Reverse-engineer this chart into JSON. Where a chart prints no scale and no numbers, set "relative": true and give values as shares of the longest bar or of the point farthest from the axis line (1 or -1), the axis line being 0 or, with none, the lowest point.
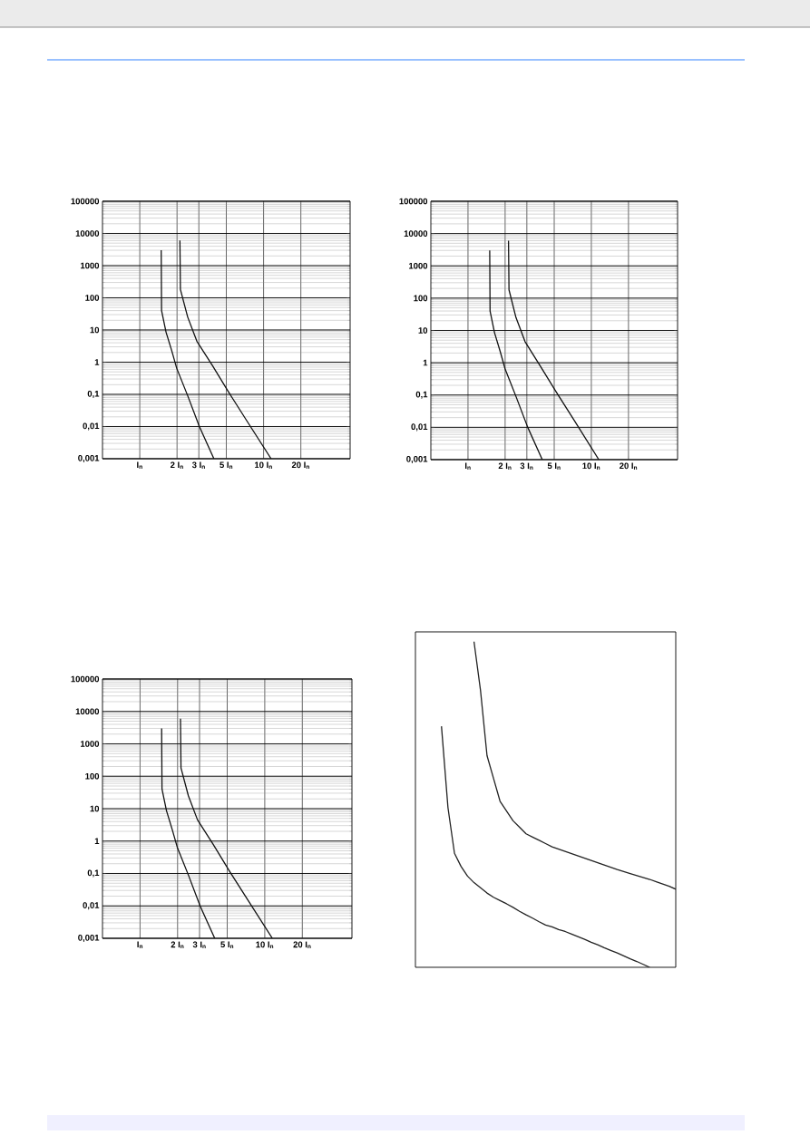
{
  "chart_data": [
    {
      "type": "line",
      "log": "xy",
      "xlim": [
        0.5,
        50
      ],
      "ylim": [
        0.001,
        100000
      ],
      "grid": true,
      "xticks": [
        {
          "value": 1,
          "label": "I$_{n}$"
        },
        {
          "value": 2,
          "label": "2 I$_{n}$"
        },
        {
          "value": 3,
          "label": "3 I$_{n}$"
        },
        {
          "value": 5,
          "label": "5 I$_{n}$"
        },
        {
          "value": 10,
          "label": "10 I$_{n}$"
        },
        {
          "value": 20,
          "label": "20 I$_{n}$"
        }
      ],
      "yticks": [
        {
          "value": 0.001,
          "label": "0,001"
        },
        {
          "value": 0.01,
          "label": "0,01"
        },
        {
          "value": 0.1,
          "label": "0,1"
        },
        1,
        10,
        100,
        1000,
        10000,
        100000
      ],
      "series": [
        {
          "color": "#111111",
          "x": [
            1.49,
            1.5,
            1.63,
            1.81,
            1.99,
            2.44,
            3.03,
            3.97
          ],
          "values": [
            3000,
            40,
            8.6,
            2.3,
            0.64,
            0.09,
            0.01,
            0.001
          ]
        },
        {
          "color": "#111111",
          "x": [
            2.11,
            2.13,
            2.44,
            2.89,
            3.85,
            5.13,
            7.25,
            11.5
          ],
          "values": [
            6000,
            180,
            25,
            4.5,
            0.8,
            0.13,
            0.016,
            0.001
          ]
        }
      ]
    },
    {
      "type": "line",
      "log": "xy",
      "xlim": [
        0.5,
        50
      ],
      "ylim": [
        0.001,
        100000
      ],
      "grid": true,
      "xticks": [
        {
          "value": 1,
          "label": "I$_{n}$"
        },
        {
          "value": 2,
          "label": "2 I$_{n}$"
        },
        {
          "value": 3,
          "label": "3 I$_{n}$"
        },
        {
          "value": 5,
          "label": "5 I$_{n}$"
        },
        {
          "value": 10,
          "label": "10 I$_{n}$"
        },
        {
          "value": 20,
          "label": "20 I$_{n}$"
        }
      ],
      "yticks": [
        {
          "value": 0.001,
          "label": "0,001"
        },
        {
          "value": 0.01,
          "label": "0,01"
        },
        {
          "value": 0.1,
          "label": "0,1"
        },
        1,
        10,
        100,
        1000,
        10000,
        100000
      ],
      "series": [
        {
          "color": "#111111",
          "x": [
            1.5,
            1.51,
            1.64,
            1.82,
            2.0,
            2.45,
            3.05,
            4.0
          ],
          "values": [
            3000,
            40,
            8.6,
            2.3,
            0.64,
            0.09,
            0.01,
            0.001
          ]
        },
        {
          "color": "#111111",
          "x": [
            2.13,
            2.15,
            2.45,
            2.9,
            3.85,
            5.15,
            7.3,
            11.5
          ],
          "values": [
            6000,
            180,
            25,
            4.5,
            0.8,
            0.13,
            0.016,
            0.001
          ]
        }
      ]
    },
    {
      "type": "line",
      "log": "xy",
      "xlim": [
        0.5,
        50
      ],
      "ylim": [
        0.001,
        100000
      ],
      "grid": true,
      "xticks": [
        {
          "value": 1,
          "label": "I$_{n}$"
        },
        {
          "value": 2,
          "label": "2 I$_{n}$"
        },
        {
          "value": 3,
          "label": "3 I$_{n}$"
        },
        {
          "value": 5,
          "label": "5 I$_{n}$"
        },
        {
          "value": 10,
          "label": "10 I$_{n}$"
        },
        {
          "value": 20,
          "label": "20 I$_{n}$"
        }
      ],
      "yticks": [
        {
          "value": 0.001,
          "label": "0,001"
        },
        {
          "value": 0.01,
          "label": "0,01"
        },
        {
          "value": 0.1,
          "label": "0,1"
        },
        1,
        10,
        100,
        1000,
        10000,
        100000
      ],
      "series": [
        {
          "color": "#111111",
          "x": [
            1.49,
            1.5,
            1.63,
            1.81,
            1.99,
            2.44,
            3.03,
            3.97
          ],
          "values": [
            3000,
            40,
            8.6,
            2.3,
            0.64,
            0.09,
            0.01,
            0.001
          ]
        },
        {
          "color": "#111111",
          "x": [
            2.11,
            2.13,
            2.44,
            2.89,
            3.85,
            5.13,
            7.25,
            11.5
          ],
          "values": [
            6000,
            180,
            25,
            4.5,
            0.8,
            0.13,
            0.016,
            0.001
          ]
        }
      ]
    },
    {
      "type": "line",
      "relative": true,
      "categories": [
        null,
        null,
        null,
        null,
        null,
        null,
        null,
        null,
        null,
        null,
        null,
        null,
        null,
        null,
        null,
        null,
        null,
        null,
        null,
        null,
        null,
        null,
        null,
        null,
        null,
        null,
        null,
        null,
        null,
        null,
        null,
        null,
        null,
        null,
        null,
        null,
        null,
        null,
        null,
        null,
        null
      ],
      "series": [
        {
          "color": "#222222",
          "values": [
            null,
            null,
            null,
            null,
            0.74,
            0.49,
            0.35,
            0.31,
            0.28,
            0.26,
            0.244,
            0.228,
            0.215,
            0.205,
            0.195,
            0.184,
            0.172,
            0.161,
            0.151,
            0.14,
            0.13,
            0.124,
            0.116,
            0.11,
            0.102,
            0.094,
            0.086,
            0.077,
            0.069,
            0.06,
            0.052,
            0.044,
            0.035,
            0.026,
            0.018,
            0.009,
            0,
            null,
            null,
            null,
            null
          ]
        },
        {
          "color": "#222222",
          "values": [
            null,
            null,
            null,
            null,
            null,
            null,
            null,
            null,
            null,
            1,
            0.85,
            0.65,
            0.58,
            0.51,
            0.48,
            0.45,
            0.43,
            0.41,
            0.4,
            0.39,
            0.38,
            0.37,
            0.363,
            0.356,
            0.349,
            0.342,
            0.335,
            0.328,
            0.321,
            0.314,
            0.307,
            0.3,
            0.294,
            0.288,
            0.282,
            0.276,
            0.27,
            0.263,
            0.256,
            0.249,
            0.24
          ]
        }
      ]
    }
  ]
}
